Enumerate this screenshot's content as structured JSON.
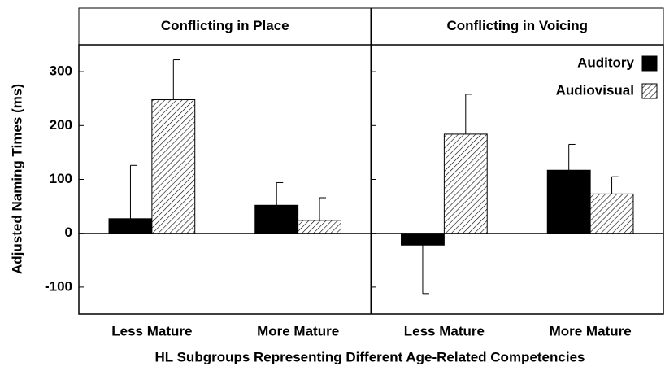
{
  "chart_data": {
    "type": "bar",
    "ylabel": "Adjusted Naming Times (ms)",
    "xlabel": "HL Subgroups Representing Different Age-Related Competencies",
    "ylim": [
      -150,
      350
    ],
    "yticks": [
      -100,
      0,
      100,
      200,
      300
    ],
    "legend_position": "upper right",
    "legend": [
      {
        "name": "Auditory",
        "color": "#000000",
        "hatch": false
      },
      {
        "name": "Audiovisual",
        "color": "#ffffff",
        "hatch": true
      }
    ],
    "panels": [
      {
        "title": "Conflicting in Place",
        "categories": [
          "Less Mature",
          "More Mature"
        ],
        "series": [
          {
            "values": [
              27,
              52
            ],
            "errors": [
              99,
              42
            ]
          },
          {
            "values": [
              248,
              24
            ],
            "errors": [
              74,
              42
            ]
          }
        ]
      },
      {
        "title": "Conflicting in Voicing",
        "categories": [
          "Less Mature",
          "More Mature"
        ],
        "series": [
          {
            "values": [
              -22,
              117
            ],
            "errors": [
              90,
              48
            ]
          },
          {
            "values": [
              184,
              73
            ],
            "errors": [
              74,
              32
            ]
          }
        ]
      }
    ]
  }
}
